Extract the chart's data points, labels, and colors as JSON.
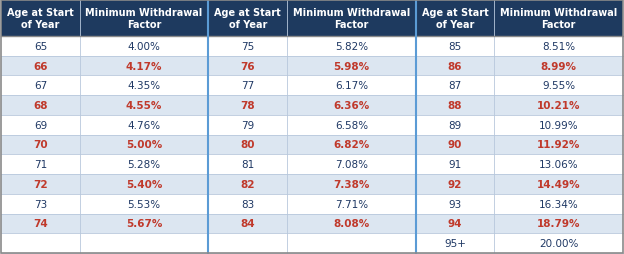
{
  "header_bg": "#1e3a5f",
  "header_text_color": "#ffffff",
  "row_colors_even": "#dce6f1",
  "row_colors_odd": "#ffffff",
  "border_color": "#8a8a8a",
  "divider_color": "#5b9bd5",
  "col_headers": [
    "Age at Start\nof Year",
    "Minimum Withdrawal\nFactor"
  ],
  "col1": [
    [
      "65",
      "4.00%",
      false
    ],
    [
      "66",
      "4.17%",
      true
    ],
    [
      "67",
      "4.35%",
      false
    ],
    [
      "68",
      "4.55%",
      true
    ],
    [
      "69",
      "4.76%",
      false
    ],
    [
      "70",
      "5.00%",
      true
    ],
    [
      "71",
      "5.28%",
      false
    ],
    [
      "72",
      "5.40%",
      true
    ],
    [
      "73",
      "5.53%",
      false
    ],
    [
      "74",
      "5.67%",
      true
    ]
  ],
  "col2": [
    [
      "75",
      "5.82%",
      false
    ],
    [
      "76",
      "5.98%",
      true
    ],
    [
      "77",
      "6.17%",
      false
    ],
    [
      "78",
      "6.36%",
      true
    ],
    [
      "79",
      "6.58%",
      false
    ],
    [
      "80",
      "6.82%",
      true
    ],
    [
      "81",
      "7.08%",
      false
    ],
    [
      "82",
      "7.38%",
      true
    ],
    [
      "83",
      "7.71%",
      false
    ],
    [
      "84",
      "8.08%",
      true
    ]
  ],
  "col3": [
    [
      "85",
      "8.51%",
      false
    ],
    [
      "86",
      "8.99%",
      true
    ],
    [
      "87",
      "9.55%",
      false
    ],
    [
      "88",
      "10.21%",
      true
    ],
    [
      "89",
      "10.99%",
      false
    ],
    [
      "90",
      "11.92%",
      true
    ],
    [
      "91",
      "13.06%",
      false
    ],
    [
      "92",
      "14.49%",
      true
    ],
    [
      "93",
      "16.34%",
      false
    ],
    [
      "94",
      "18.79%",
      true
    ],
    [
      "95+",
      "20.00%",
      false
    ]
  ],
  "data_text_color_normal": "#1f3864",
  "data_text_color_bold": "#c0392b",
  "figwidth": 6.24,
  "figheight": 2.55,
  "dpi": 100
}
